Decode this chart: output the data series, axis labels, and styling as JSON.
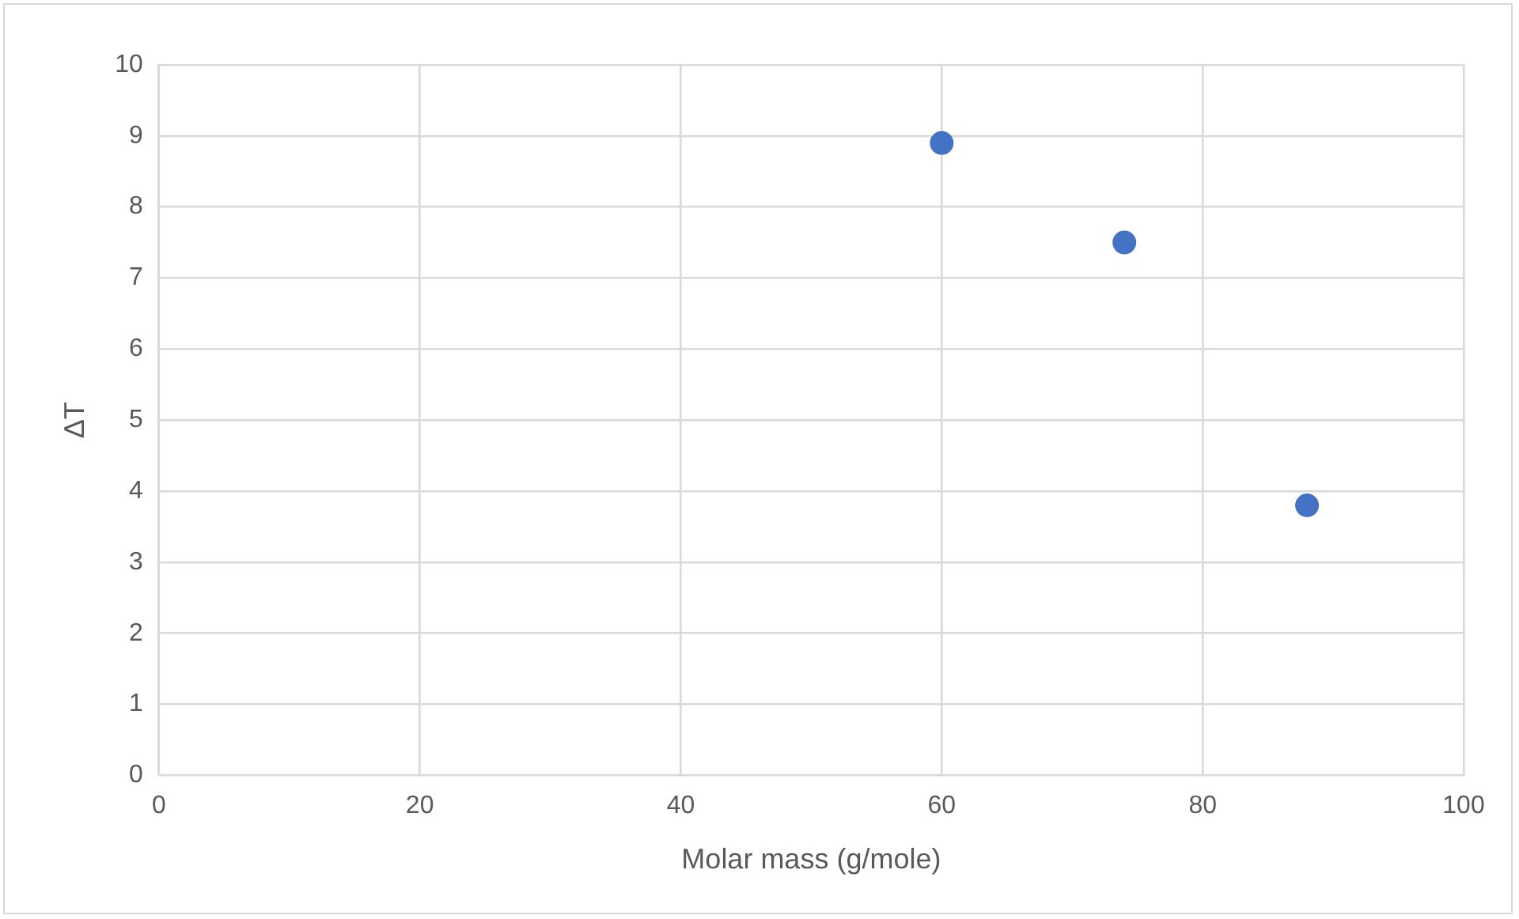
{
  "chart_data": {
    "type": "scatter",
    "xlabel": "Molar mass (g/mole)",
    "ylabel": "ΔT",
    "x": [
      60,
      74,
      88
    ],
    "series": [
      {
        "color": "#4472c4",
        "values": [
          8.9,
          7.5,
          3.8
        ]
      }
    ],
    "xlim": [
      0,
      100
    ],
    "xticks": [
      0,
      20,
      40,
      60,
      80,
      100
    ],
    "ylim": [
      0,
      10
    ],
    "yticks": [
      0,
      1,
      2,
      3,
      4,
      5,
      6,
      7,
      8,
      9,
      10
    ],
    "grid": true,
    "legend": false,
    "marker": "circle"
  }
}
